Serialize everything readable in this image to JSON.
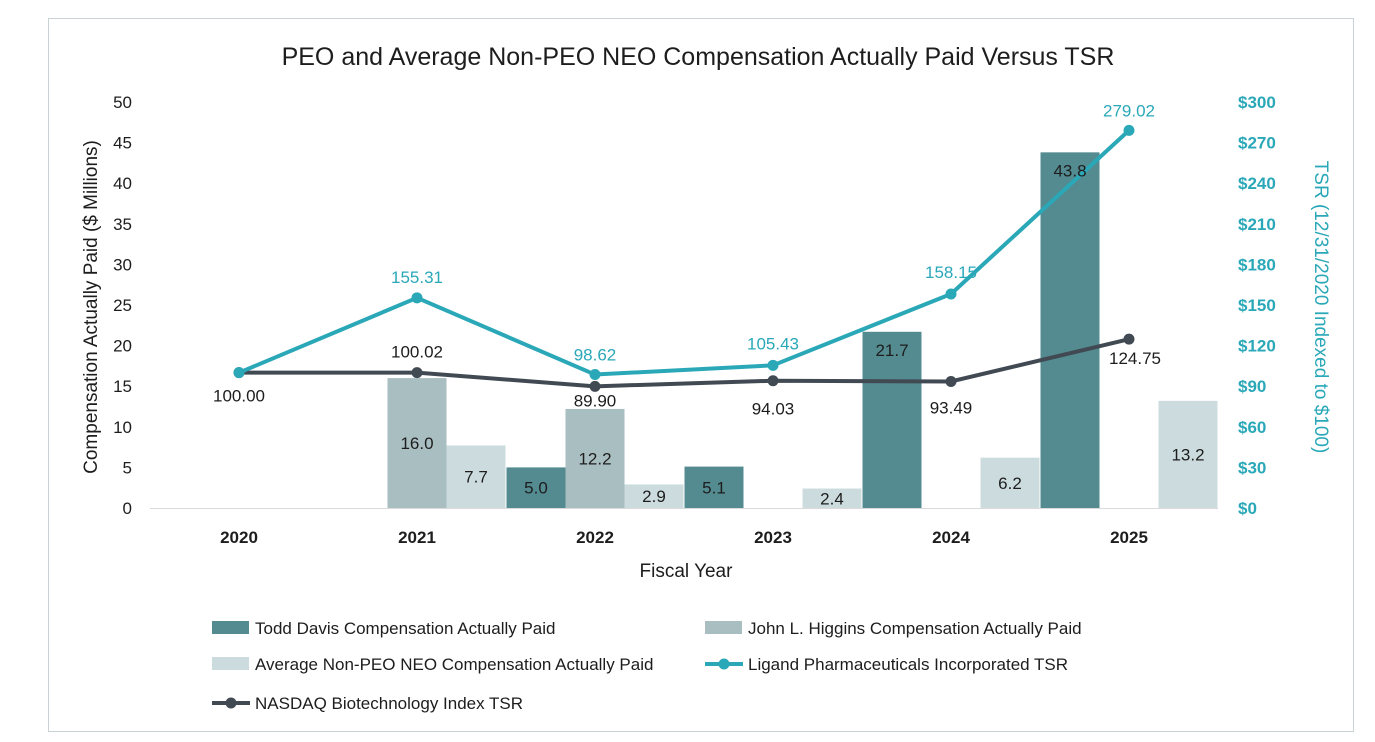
{
  "chart_data": {
    "type": "bar",
    "title": "PEO and Average Non-PEO NEO Compensation Actually Paid Versus TSR",
    "xlabel": "Fiscal Year",
    "ylabel": "Compensation Actually Paid ($ Millions)",
    "y2label": "TSR (12/31/2020 Indexed to $100)",
    "categories": [
      "2020",
      "2021",
      "2022",
      "2023",
      "2024",
      "2025"
    ],
    "ylim": [
      0,
      50
    ],
    "yticks": [
      "0",
      "5",
      "10",
      "15",
      "20",
      "25",
      "30",
      "35",
      "40",
      "45",
      "50"
    ],
    "y2lim": [
      0,
      300
    ],
    "y2ticks": [
      "$0",
      "$30",
      "$60",
      "$90",
      "$120",
      "$150",
      "$180",
      "$210",
      "$240",
      "$270",
      "$300"
    ],
    "grid": false,
    "legend_position": "bottom",
    "series": [
      {
        "name": "Todd Davis Compensation Actually Paid",
        "kind": "bar",
        "axis": "left",
        "color": "#538b90",
        "values": [
          null,
          null,
          5.0,
          5.1,
          21.7,
          43.8
        ],
        "labels": [
          "",
          "",
          "5.0",
          "5.1",
          "21.7",
          "43.8"
        ]
      },
      {
        "name": "John L. Higgins Compensation Actually Paid",
        "kind": "bar",
        "axis": "left",
        "color": "#a9bec1",
        "values": [
          null,
          16.0,
          12.2,
          null,
          null,
          null
        ],
        "labels": [
          "",
          "16.0",
          "12.2",
          "",
          "",
          ""
        ]
      },
      {
        "name": "Average Non-PEO NEO Compensation Actually Paid",
        "kind": "bar",
        "axis": "left",
        "color": "#ccdcde",
        "values": [
          null,
          7.7,
          2.9,
          2.4,
          6.2,
          13.2
        ],
        "labels": [
          "",
          "7.7",
          "2.9",
          "2.4",
          "6.2",
          "13.2"
        ]
      },
      {
        "name": "Ligand Pharmaceuticals Incorporated TSR",
        "kind": "line",
        "axis": "right",
        "color": "#2aa8b8",
        "values": [
          100.0,
          155.31,
          98.62,
          105.43,
          158.15,
          279.02
        ],
        "labels": [
          "",
          "155.31",
          "98.62",
          "105.43",
          "158.15",
          "279.02"
        ]
      },
      {
        "name": "NASDAQ Biotechnology Index TSR",
        "kind": "line",
        "axis": "right",
        "color": "#414a53",
        "values": [
          100.0,
          100.02,
          89.9,
          94.03,
          93.49,
          124.75
        ],
        "labels": [
          "100.00",
          "100.02",
          "89.90",
          "94.03",
          "93.49",
          "124.75"
        ]
      }
    ]
  }
}
